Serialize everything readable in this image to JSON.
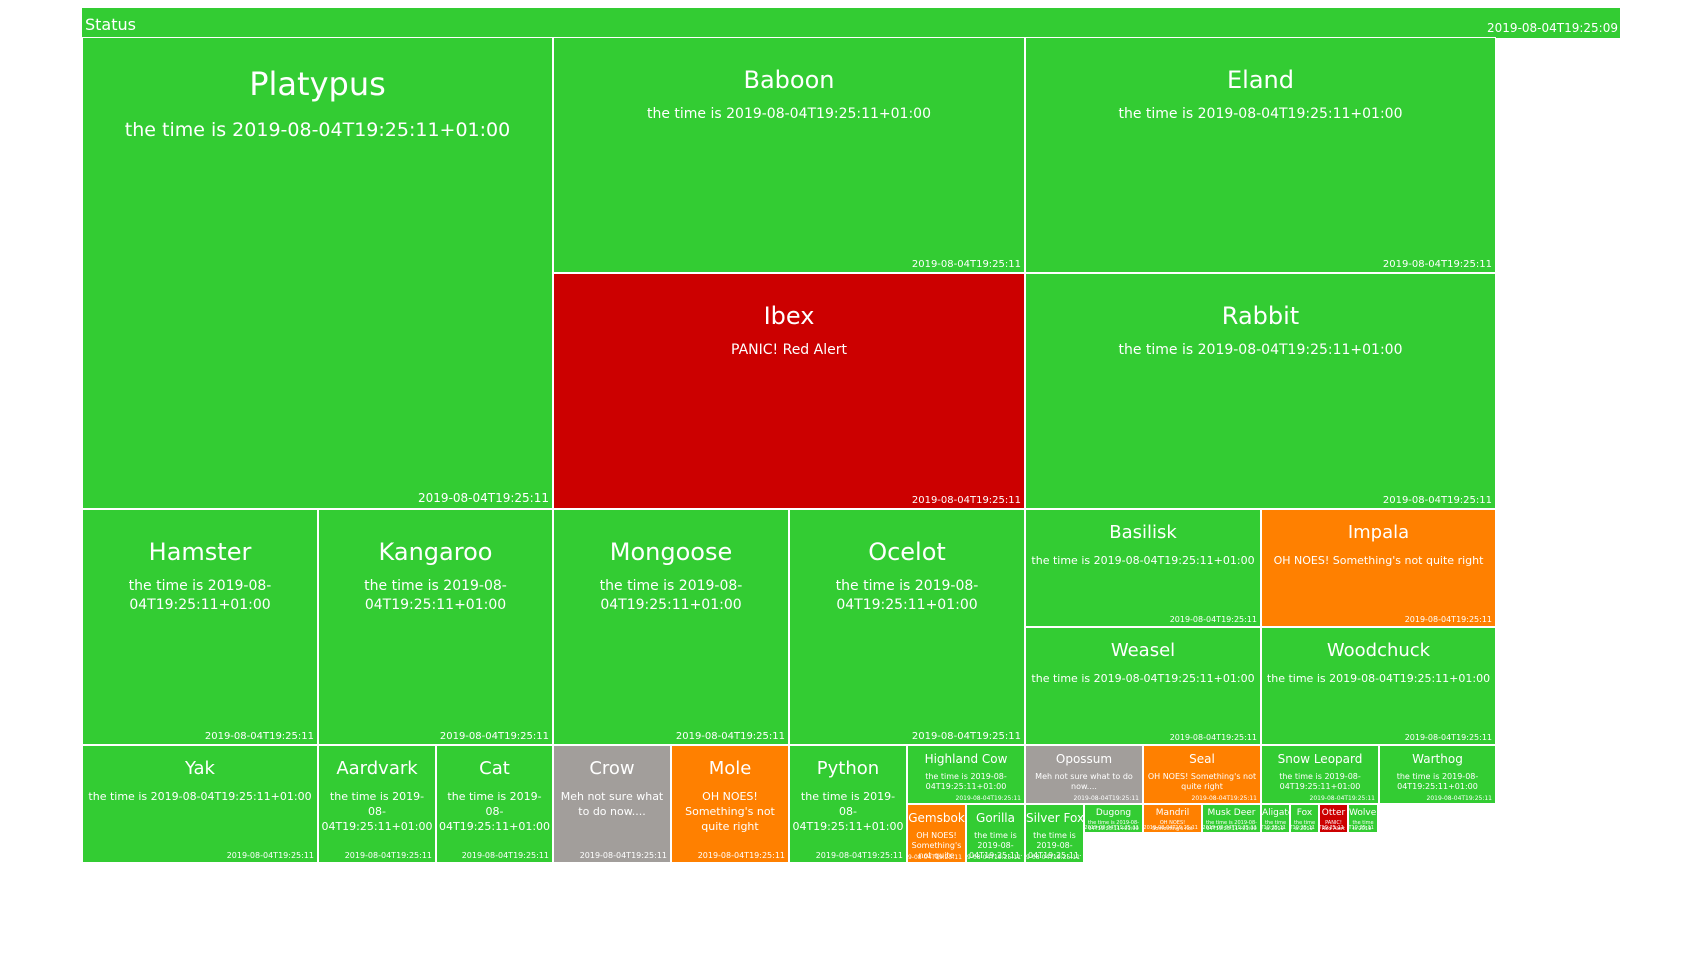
{
  "header": {
    "title": "Status",
    "timestamp": "2019-08-04T19:25:09"
  },
  "colors": {
    "ok": "#33cc33",
    "alert": "#cc0000",
    "warning": "#ff8000",
    "unknown": "#a29e9b"
  },
  "tiles": [
    {
      "name": "Platypus",
      "message": "the time is 2019-08-04T19:25:11+01:00",
      "timestamp": "2019-08-04T19:25:11",
      "status": "ok"
    },
    {
      "name": "Baboon",
      "message": "the time is 2019-08-04T19:25:11+01:00",
      "timestamp": "2019-08-04T19:25:11",
      "status": "ok"
    },
    {
      "name": "Eland",
      "message": "the time is 2019-08-04T19:25:11+01:00",
      "timestamp": "2019-08-04T19:25:11",
      "status": "ok"
    },
    {
      "name": "Ibex",
      "message": "PANIC! Red Alert",
      "timestamp": "2019-08-04T19:25:11",
      "status": "alert"
    },
    {
      "name": "Rabbit",
      "message": "the time is 2019-08-04T19:25:11+01:00",
      "timestamp": "2019-08-04T19:25:11",
      "status": "ok"
    },
    {
      "name": "Hamster",
      "message": "the time is 2019-08-04T19:25:11+01:00",
      "timestamp": "2019-08-04T19:25:11",
      "status": "ok"
    },
    {
      "name": "Kangaroo",
      "message": "the time is 2019-08-04T19:25:11+01:00",
      "timestamp": "2019-08-04T19:25:11",
      "status": "ok"
    },
    {
      "name": "Mongoose",
      "message": "the time is 2019-08-04T19:25:11+01:00",
      "timestamp": "2019-08-04T19:25:11",
      "status": "ok"
    },
    {
      "name": "Ocelot",
      "message": "the time is 2019-08-04T19:25:11+01:00",
      "timestamp": "2019-08-04T19:25:11",
      "status": "ok"
    },
    {
      "name": "Basilisk",
      "message": "the time is 2019-08-04T19:25:11+01:00",
      "timestamp": "2019-08-04T19:25:11",
      "status": "ok"
    },
    {
      "name": "Impala",
      "message": "OH NOES! Something's not quite right",
      "timestamp": "2019-08-04T19:25:11",
      "status": "warning"
    },
    {
      "name": "Weasel",
      "message": "the time is 2019-08-04T19:25:11+01:00",
      "timestamp": "2019-08-04T19:25:11",
      "status": "ok"
    },
    {
      "name": "Woodchuck",
      "message": "the time is 2019-08-04T19:25:11+01:00",
      "timestamp": "2019-08-04T19:25:11",
      "status": "ok"
    },
    {
      "name": "Yak",
      "message": "the time is 2019-08-04T19:25:11+01:00",
      "timestamp": "2019-08-04T19:25:11",
      "status": "ok"
    },
    {
      "name": "Aardvark",
      "message": "the time is 2019-08-04T19:25:11+01:00",
      "timestamp": "2019-08-04T19:25:11",
      "status": "ok"
    },
    {
      "name": "Cat",
      "message": "the time is 2019-08-04T19:25:11+01:00",
      "timestamp": "2019-08-04T19:25:11",
      "status": "ok"
    },
    {
      "name": "Crow",
      "message": "Meh not sure what to do now....",
      "timestamp": "2019-08-04T19:25:11",
      "status": "unknown"
    },
    {
      "name": "Mole",
      "message": "OH NOES! Something's not quite right",
      "timestamp": "2019-08-04T19:25:11",
      "status": "warning"
    },
    {
      "name": "Python",
      "message": "the time is 2019-08-04T19:25:11+01:00",
      "timestamp": "2019-08-04T19:25:11",
      "status": "ok"
    },
    {
      "name": "Highland Cow",
      "message": "the time is 2019-08-04T19:25:11+01:00",
      "timestamp": "2019-08-04T19:25:11",
      "status": "ok"
    },
    {
      "name": "Opossum",
      "message": "Meh not sure what to do now....",
      "timestamp": "2019-08-04T19:25:11",
      "status": "unknown"
    },
    {
      "name": "Seal",
      "message": "OH NOES! Something's not quite right",
      "timestamp": "2019-08-04T19:25:11",
      "status": "warning"
    },
    {
      "name": "Snow Leopard",
      "message": "the time is 2019-08-04T19:25:11+01:00",
      "timestamp": "2019-08-04T19:25:11",
      "status": "ok"
    },
    {
      "name": "Warthog",
      "message": "the time is 2019-08-04T19:25:11+01:00",
      "timestamp": "2019-08-04T19:25:11",
      "status": "ok"
    },
    {
      "name": "Gemsbok",
      "message": "OH NOES! Something's not quite right",
      "timestamp": "2019-08-04T19:25:11",
      "status": "warning"
    },
    {
      "name": "Gorilla",
      "message": "the time is 2019-08-04T19:25:11+01:00",
      "timestamp": "2019-08-04T19:25:11",
      "status": "ok"
    },
    {
      "name": "Silver Fox",
      "message": "the time is 2019-08-04T19:25:11+01:00",
      "timestamp": "2019-08-04T19:25:11",
      "status": "ok"
    },
    {
      "name": "Dugong",
      "message": "the time is 2019-08-04T19:25:11+01:00",
      "timestamp": "2019-08-04T19:25:11",
      "status": "ok"
    },
    {
      "name": "Mandril",
      "message": "OH NOES! Something's not quite right",
      "timestamp": "2019-08-04T19:25:11",
      "status": "warning"
    },
    {
      "name": "Musk Deer",
      "message": "the time is 2019-08-04T19:25:11+01:00",
      "timestamp": "2019-08-04T19:25:11",
      "status": "ok"
    },
    {
      "name": "Aligator",
      "message": "the time is 2019-08-04T19:25:11+01:00",
      "timestamp": "2019-08-04T19:25:11",
      "status": "ok"
    },
    {
      "name": "Fox",
      "message": "the time is 2019-08-04T19:25:11+01:00",
      "timestamp": "2019-08-04T19:25:11",
      "status": "ok"
    },
    {
      "name": "Otter",
      "message": "PANIC! Red Alert",
      "timestamp": "2019-08-04T19:25:11",
      "status": "alert"
    },
    {
      "name": "Wolverine",
      "message": "the time is 2019-08-04T19:25:11+01:00",
      "timestamp": "2019-08-04T19:25:11",
      "status": "ok"
    }
  ]
}
